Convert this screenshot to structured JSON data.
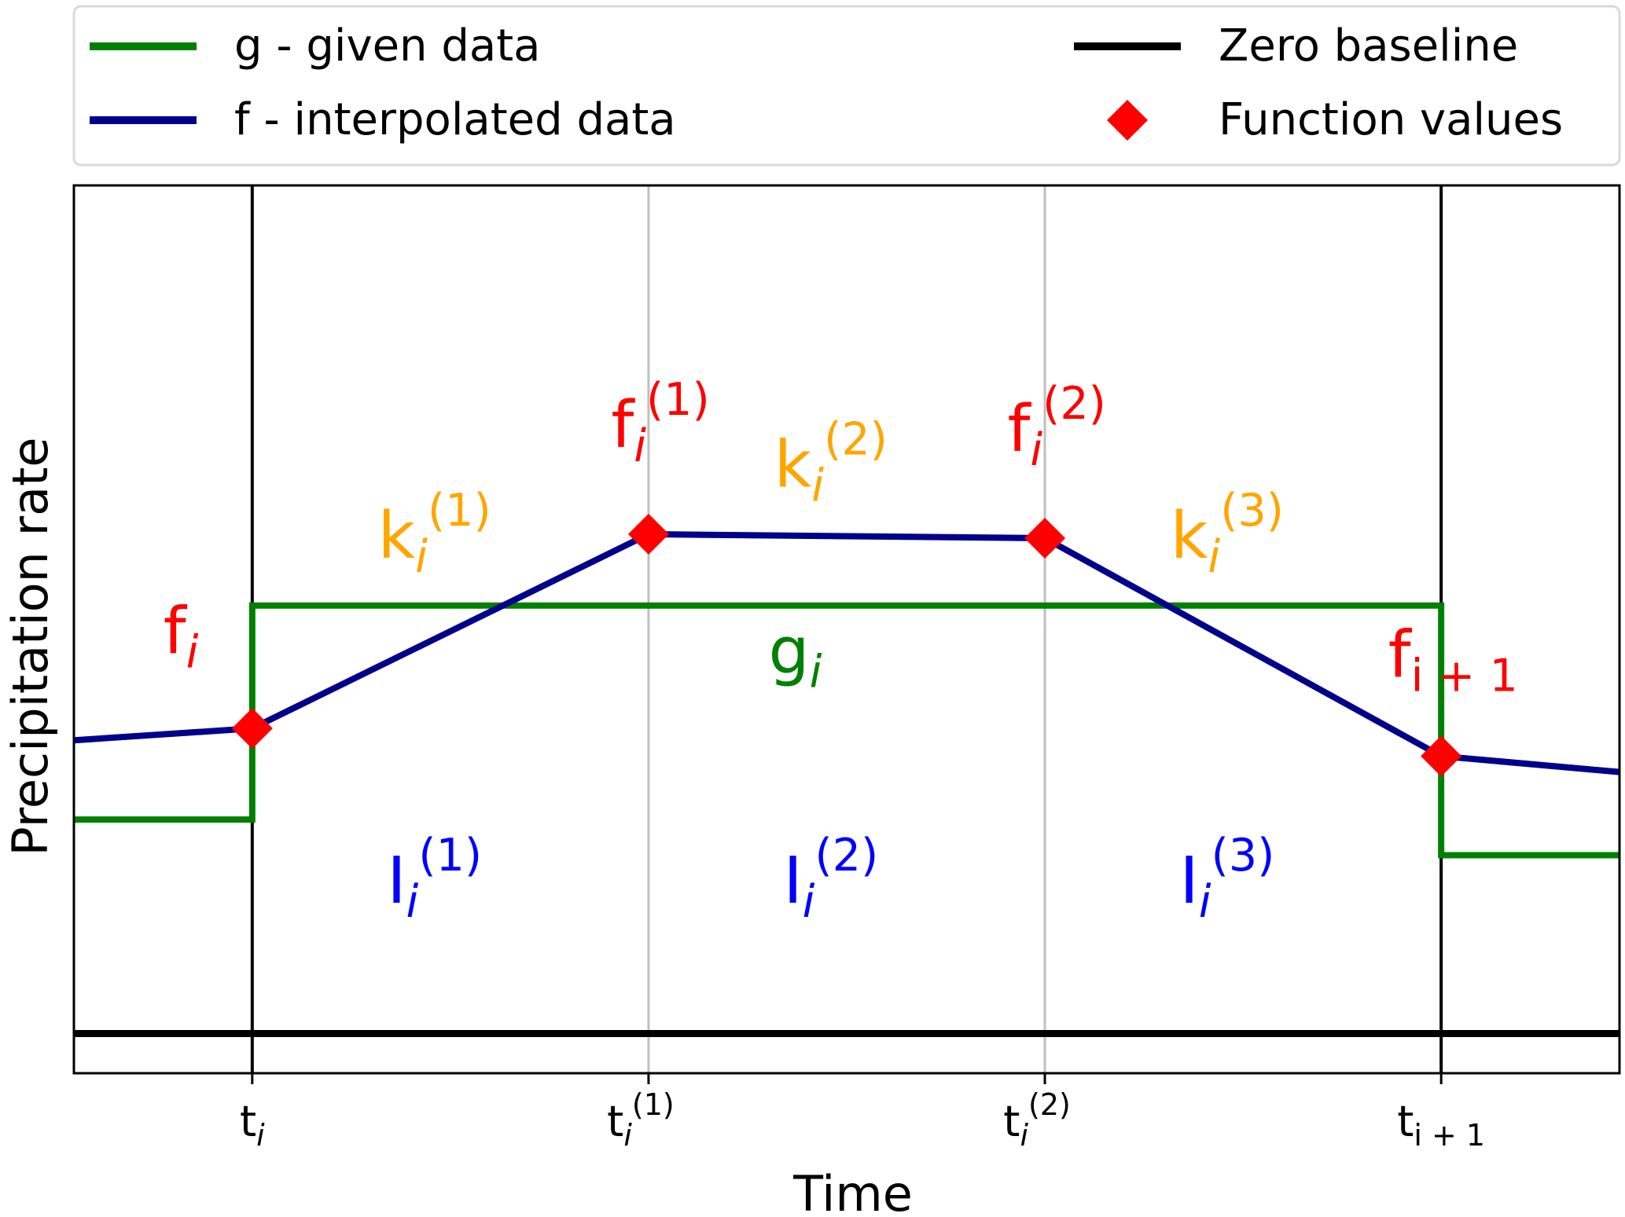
{
  "chart_data": {
    "type": "line",
    "title": "",
    "xlabel": "Time",
    "ylabel": "Precipitation rate",
    "xlim": [
      -0.45,
      3.45
    ],
    "ylim": [
      -0.1,
      2.14
    ],
    "grid": "vertical lines at interior x ticks",
    "legend_placement": "above plot, two columns",
    "x_ticks": [
      {
        "x": 0,
        "base": "t",
        "sub": "i",
        "sup": ""
      },
      {
        "x": 1,
        "base": "t",
        "sub": "i",
        "sup": "(1)"
      },
      {
        "x": 2,
        "base": "t",
        "sub": "i",
        "sup": "(2)"
      },
      {
        "x": 3,
        "base": "t",
        "sub": "i + 1",
        "sup": ""
      }
    ],
    "vertical_lines": [
      {
        "x": 0,
        "style": "solid",
        "color": "#000000"
      },
      {
        "x": 1,
        "style": "grid",
        "color": "#bfbfbf"
      },
      {
        "x": 2,
        "style": "grid",
        "color": "#bfbfbf"
      },
      {
        "x": 3,
        "style": "solid",
        "color": "#000000"
      }
    ],
    "series": [
      {
        "name": "g - given data",
        "kind": "step",
        "color": "#008000",
        "x": [
          -0.45,
          0,
          0,
          3,
          3,
          3.45
        ],
        "y": [
          0.54,
          0.54,
          1.08,
          1.08,
          0.45,
          0.45
        ]
      },
      {
        "name": "f - interpolated data",
        "kind": "line",
        "color": "#00008b",
        "x": [
          -0.45,
          0,
          1,
          2,
          3,
          3.45
        ],
        "y": [
          0.74,
          0.77,
          1.26,
          1.25,
          0.7,
          0.66
        ]
      },
      {
        "name": "Zero baseline",
        "kind": "line",
        "color": "#000000",
        "x": [
          -0.45,
          3.45
        ],
        "y": [
          0,
          0
        ]
      },
      {
        "name": "Function values",
        "kind": "markers",
        "marker": "diamond",
        "color": "#ff0000",
        "x": [
          0,
          1,
          2,
          3
        ],
        "y": [
          0.77,
          1.26,
          1.25,
          0.7
        ]
      }
    ],
    "annotations": [
      {
        "base": "f",
        "sub": "i",
        "sup": "",
        "color": "#ff0000",
        "x": -0.18,
        "y": 0.96
      },
      {
        "base": "f",
        "sub": "i",
        "sup": "(1)",
        "color": "#ff0000",
        "x": 1.03,
        "y": 1.48
      },
      {
        "base": "f",
        "sub": "i",
        "sup": "(2)",
        "color": "#ff0000",
        "x": 2.03,
        "y": 1.47
      },
      {
        "base": "f",
        "sub": "i + 1",
        "sup": "",
        "color": "#ff0000",
        "x": 3.03,
        "y": 0.9
      },
      {
        "base": "k",
        "sub": "i",
        "sup": "(1)",
        "color": "#ffa500",
        "x": 0.46,
        "y": 1.2
      },
      {
        "base": "k",
        "sub": "i",
        "sup": "(2)",
        "color": "#ffa500",
        "x": 1.46,
        "y": 1.38
      },
      {
        "base": "k",
        "sub": "i",
        "sup": "(3)",
        "color": "#ffa500",
        "x": 2.46,
        "y": 1.2
      },
      {
        "base": "g",
        "sub": "i",
        "sup": "",
        "color": "#008000",
        "x": 1.37,
        "y": 0.91
      },
      {
        "base": "I",
        "sub": "i",
        "sup": "(1)",
        "color": "#0000ff",
        "x": 0.46,
        "y": 0.33
      },
      {
        "base": "I",
        "sub": "i",
        "sup": "(2)",
        "color": "#0000ff",
        "x": 1.46,
        "y": 0.33
      },
      {
        "base": "I",
        "sub": "i",
        "sup": "(3)",
        "color": "#0000ff",
        "x": 2.46,
        "y": 0.33
      }
    ]
  }
}
